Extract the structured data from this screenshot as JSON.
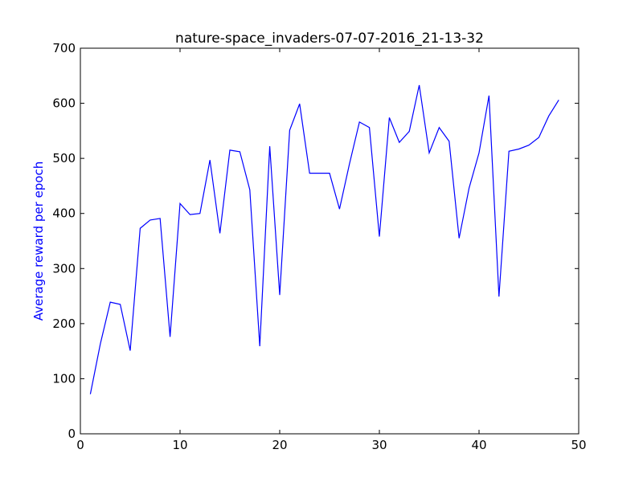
{
  "chart_data": {
    "type": "line",
    "title": "nature-space_invaders-07-07-2016_21-13-32",
    "xlabel": "",
    "ylabel": "Average reward per epoch",
    "xlim": [
      0,
      50
    ],
    "ylim": [
      0,
      700
    ],
    "xticks": [
      0,
      10,
      20,
      30,
      40,
      50
    ],
    "yticks": [
      0,
      100,
      200,
      300,
      400,
      500,
      600,
      700
    ],
    "grid": false,
    "line_color": "#0000ff",
    "ylabel_color": "#0000ff",
    "series": [
      {
        "x": [
          1,
          2,
          3,
          4,
          5,
          6,
          7,
          8,
          9,
          10,
          11,
          12,
          13,
          14,
          15,
          16,
          17,
          18,
          19,
          20,
          21,
          22,
          23,
          24,
          25,
          26,
          27,
          28,
          29,
          30,
          31,
          32,
          33,
          34,
          35,
          36,
          37,
          38,
          39,
          40,
          41,
          42,
          43,
          44,
          45,
          46,
          47,
          48
        ],
        "values": [
          72,
          163,
          239,
          235,
          151,
          373,
          388,
          391,
          176,
          418,
          398,
          400,
          497,
          364,
          515,
          512,
          443,
          159,
          522,
          252,
          551,
          599,
          473,
          473,
          473,
          408,
          490,
          566,
          556,
          358,
          574,
          529,
          549,
          633,
          510,
          556,
          531,
          355,
          446,
          510,
          614,
          249,
          513,
          517,
          524,
          538,
          577,
          606
        ]
      }
    ]
  }
}
